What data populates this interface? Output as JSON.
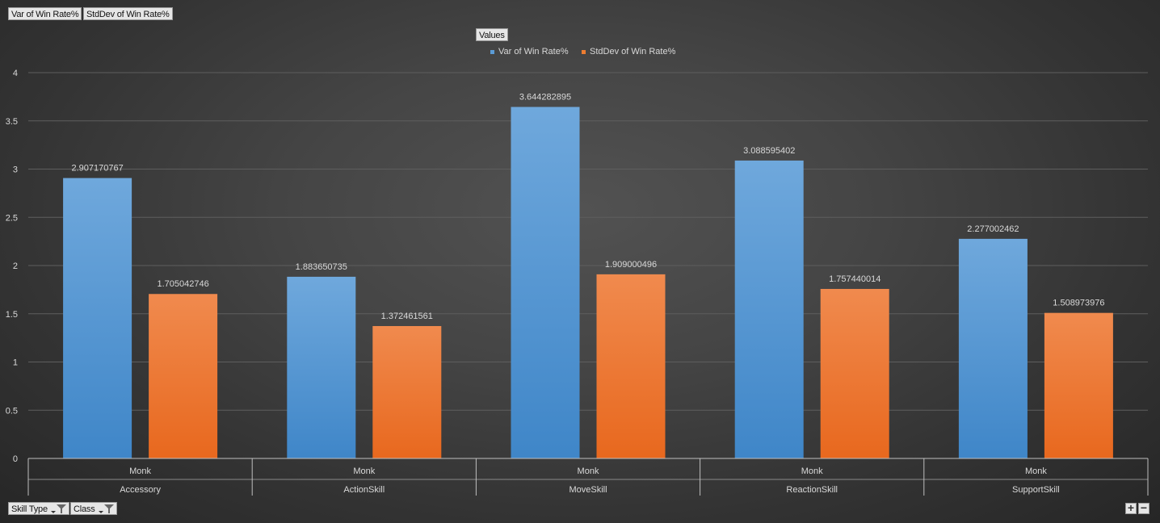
{
  "fields": {
    "value_fields": [
      "Var of Win Rate%",
      "StdDev of Win Rate%"
    ],
    "legend_field": "Values",
    "axis_fields": [
      "Skill Type",
      "Class"
    ]
  },
  "colors": {
    "series1": "#5b9bd5",
    "series2": "#ed7d31"
  },
  "icons": {
    "filter": "filter-dropdown-icon",
    "zoom_in": "plus-icon",
    "zoom_out": "minus-icon"
  },
  "chart_data": {
    "type": "bar",
    "title": "",
    "xlabel": "",
    "ylabel": "",
    "ylim": [
      0,
      4
    ],
    "yticks": [
      "0",
      "0.5",
      "1",
      "1.5",
      "2",
      "2.5",
      "3",
      "3.5",
      "4"
    ],
    "grid": true,
    "legend": "top-center",
    "categories": [
      {
        "outer": "Accessory",
        "inner": "Monk"
      },
      {
        "outer": "ActionSkill",
        "inner": "Monk"
      },
      {
        "outer": "MoveSkill",
        "inner": "Monk"
      },
      {
        "outer": "ReactionSkill",
        "inner": "Monk"
      },
      {
        "outer": "SupportSkill",
        "inner": "Monk"
      }
    ],
    "series": [
      {
        "name": "Var of Win Rate%",
        "values": [
          2.907170767,
          1.883650735,
          3.644282895,
          3.088595402,
          2.277002462
        ],
        "labels": [
          "2.907170767",
          "1.883650735",
          "3.644282895",
          "3.088595402",
          "2.277002462"
        ]
      },
      {
        "name": "StdDev of Win Rate%",
        "values": [
          1.705042746,
          1.372461561,
          1.909000496,
          1.757440014,
          1.508973976
        ],
        "labels": [
          "1.705042746",
          "1.372461561",
          "1.909000496",
          "1.757440014",
          "1.508973976"
        ]
      }
    ]
  }
}
